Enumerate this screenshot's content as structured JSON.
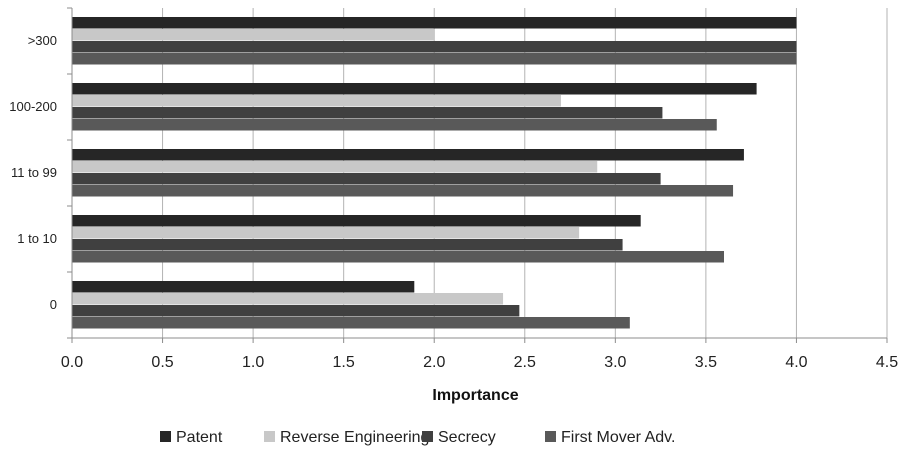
{
  "chart_data": {
    "type": "bar",
    "orientation": "horizontal",
    "title": "",
    "xlabel": "Importance",
    "ylabel": "",
    "xlim": [
      0,
      4.5
    ],
    "x_ticks": [
      "0.0",
      "0.5",
      "1.0",
      "1.5",
      "2.0",
      "2.5",
      "3.0",
      "3.5",
      "4.0",
      "4.5"
    ],
    "x_tick_values": [
      0,
      0.5,
      1.0,
      1.5,
      2.0,
      2.5,
      3.0,
      3.5,
      4.0,
      4.5
    ],
    "grid": "vertical",
    "legend_position": "bottom",
    "categories": [
      "0",
      "1 to 10",
      "11 to 99",
      "100-200",
      ">300"
    ],
    "series": [
      {
        "name": "Patent",
        "color": "#262626",
        "values": [
          1.89,
          3.14,
          3.71,
          3.78,
          4.0
        ]
      },
      {
        "name": "Reverse Engineering",
        "color": "#c8c8c8",
        "values": [
          2.38,
          2.8,
          2.9,
          2.7,
          2.0
        ]
      },
      {
        "name": "Secrecy",
        "color": "#404040",
        "values": [
          2.47,
          3.04,
          3.25,
          3.26,
          4.0
        ]
      },
      {
        "name": "First Mover Adv.",
        "color": "#595959",
        "values": [
          3.08,
          3.6,
          3.65,
          3.56,
          4.0
        ]
      }
    ]
  }
}
